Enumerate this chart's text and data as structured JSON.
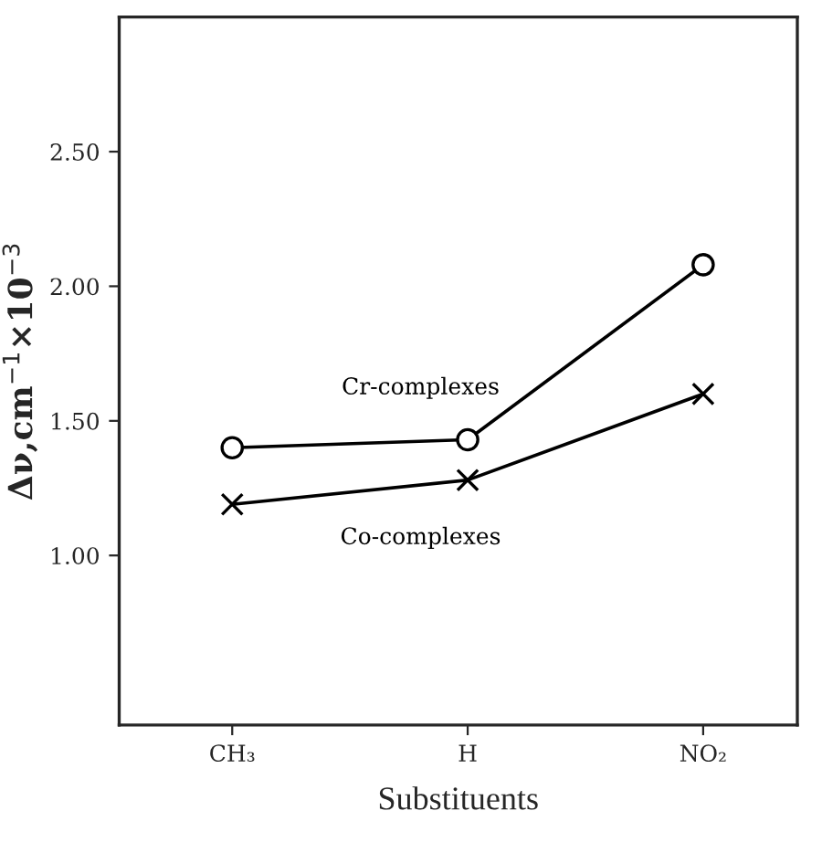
{
  "chart_data": {
    "type": "line",
    "xlabel": "Substituents",
    "ylabel": "Δν,cm$^{−1}$×10$^{−3}$",
    "categories": [
      "CH₃",
      "H",
      "NO₂"
    ],
    "series": [
      {
        "name": "Cr-complexes",
        "color": "#000000",
        "marker": "circle",
        "values": [
          1.4,
          1.43,
          2.08
        ]
      },
      {
        "name": "Co-complexes",
        "color": "#000000",
        "marker": "cross",
        "values": [
          1.19,
          1.28,
          1.6
        ]
      }
    ],
    "ylim": [
      0.37,
      3.0
    ],
    "yticks": [
      {
        "value": 1.0,
        "label": "1.00"
      },
      {
        "value": 1.5,
        "label": "1.50"
      },
      {
        "value": 2.0,
        "label": "2.00"
      },
      {
        "value": 2.5,
        "label": "2.50"
      }
    ],
    "grid": false,
    "legend": false,
    "line_style": "solid"
  }
}
